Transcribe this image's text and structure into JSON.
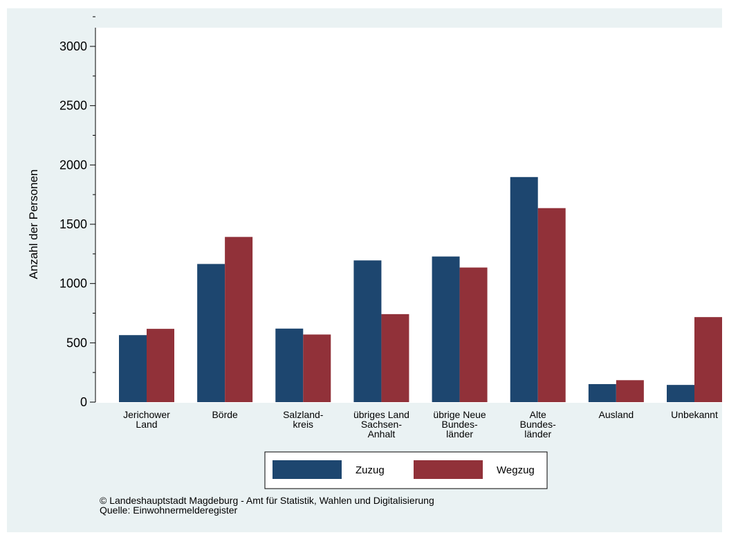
{
  "chart_data": {
    "type": "bar",
    "categories": [
      [
        "Jerichower",
        "Land"
      ],
      [
        "Börde"
      ],
      [
        "Salzland-",
        "kreis"
      ],
      [
        "übriges Land",
        "Sachsen-",
        "Anhalt"
      ],
      [
        "übrige Neue",
        "Bundes-",
        "länder"
      ],
      [
        "Alte",
        "Bundes-",
        "länder"
      ],
      [
        "Ausland"
      ],
      [
        "Unbekannt"
      ]
    ],
    "series": [
      {
        "name": "Zuzug",
        "color": "#1d466f",
        "values": [
          565,
          1165,
          620,
          1195,
          1228,
          1898,
          152,
          145
        ]
      },
      {
        "name": "Wegzug",
        "color": "#913139",
        "values": [
          618,
          1393,
          570,
          742,
          1135,
          1636,
          185,
          717
        ]
      }
    ],
    "ylabel": "Anzahl der Personen",
    "xlabel": "",
    "ylim": [
      0,
      3200
    ],
    "yticks": [
      0,
      500,
      1000,
      1500,
      2000,
      2500,
      3000
    ],
    "legend_position": "bottom",
    "grid": false,
    "background_color": "#eaf2f3"
  },
  "footer": {
    "copyright": "©  Landeshauptstadt Magdeburg - Amt für Statistik, Wahlen und Digitalisierung",
    "source": "Quelle: Einwohnermelderegister"
  }
}
